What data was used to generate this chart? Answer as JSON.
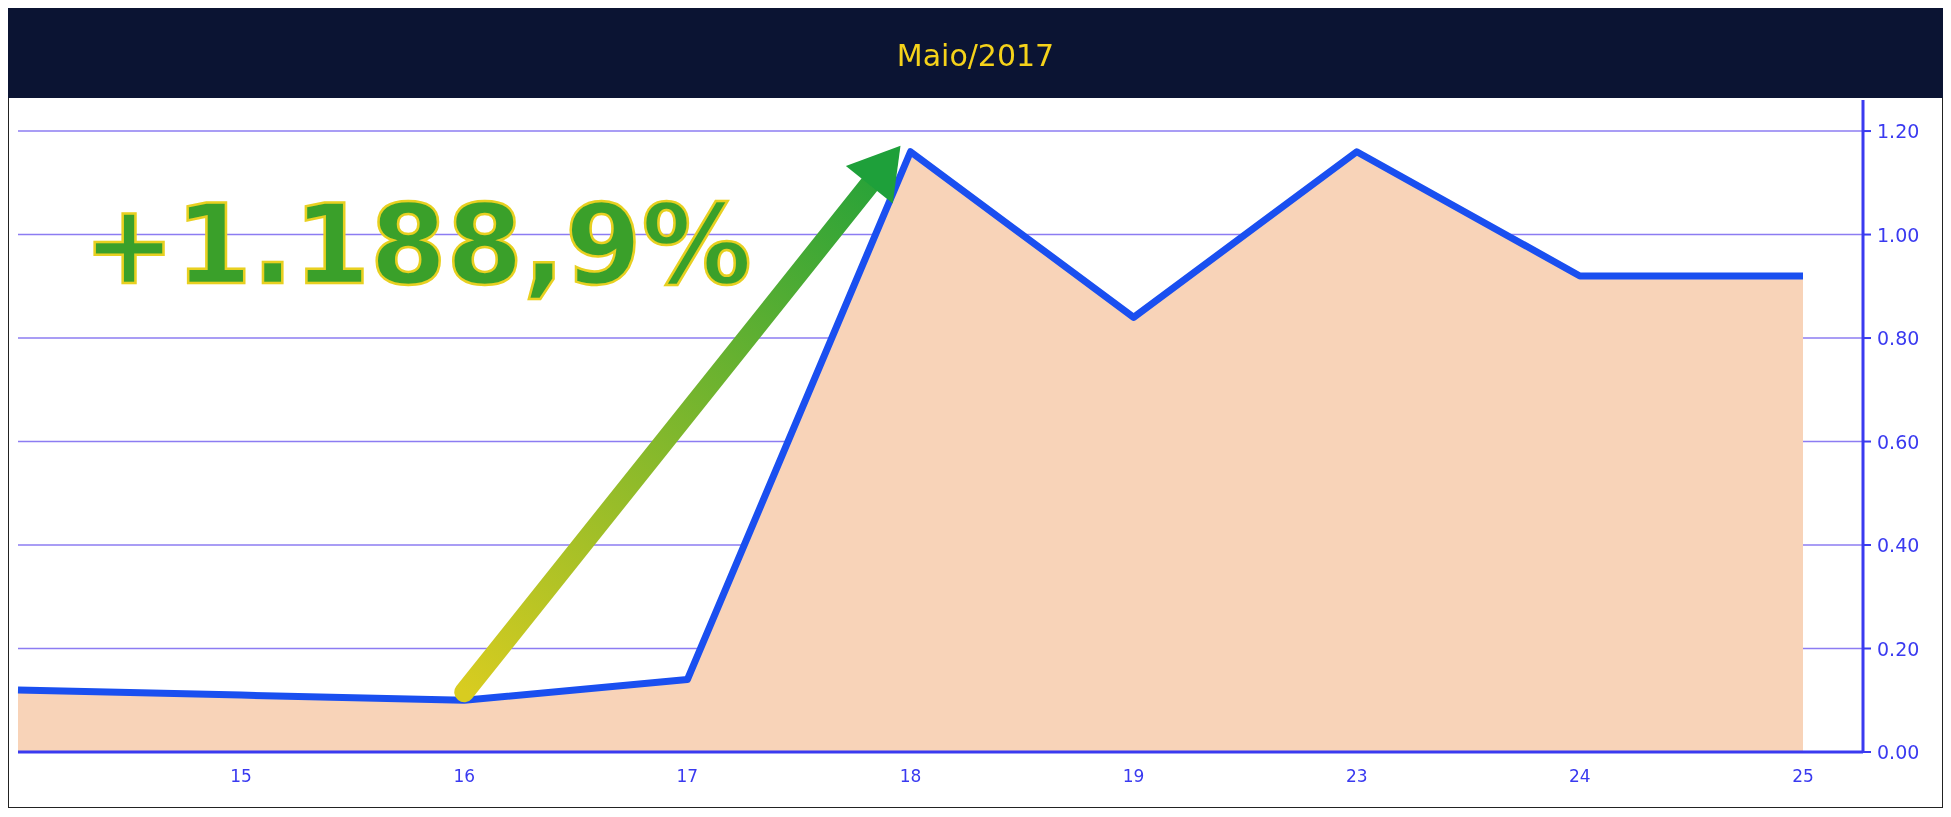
{
  "chart_data": {
    "type": "area",
    "title": "Maio/2017",
    "categories": [
      null,
      "15",
      "16",
      "17",
      "18",
      "19",
      "23",
      "24",
      "25"
    ],
    "series": [
      {
        "color": "#f8d3b8",
        "values": [
          0.12,
          0.11,
          0.1,
          0.14,
          1.16,
          0.84,
          1.16,
          0.92,
          0.92
        ]
      },
      {
        "type": "line",
        "color": "#1a4ff0",
        "values": [
          0.12,
          0.11,
          0.1,
          0.14,
          1.16,
          0.84,
          1.16,
          0.92,
          0.92
        ]
      }
    ],
    "ylim": [
      0,
      1.26
    ],
    "yticks": [
      {
        "value": 0,
        "label": "0.00"
      },
      {
        "value": 0.2,
        "label": "0.20"
      },
      {
        "value": 0.4,
        "label": "0.40"
      },
      {
        "value": 0.6,
        "label": "0.60"
      },
      {
        "value": 0.8,
        "label": "0.80"
      },
      {
        "value": 1,
        "label": "1.00"
      },
      {
        "value": 1.2,
        "label": "1.20"
      }
    ],
    "grid": "y",
    "annotations": [
      {
        "text": "+1.188,9%",
        "x": "16",
        "y": 0.1
      }
    ]
  }
}
